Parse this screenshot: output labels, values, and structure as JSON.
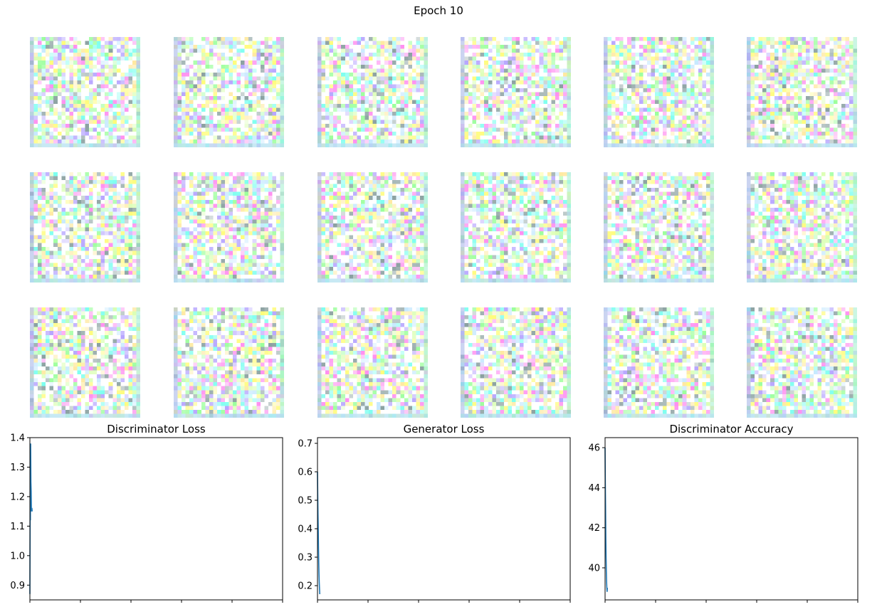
{
  "figure": {
    "title": "Epoch 10"
  },
  "sample_grid": {
    "rows": 3,
    "cols": 6,
    "palette": [
      "#ffffff",
      "#fffc7a",
      "#7dfff0",
      "#9bff9b",
      "#b7a6ff",
      "#ff8ff0",
      "#d9ffb0",
      "#c4e8ff",
      "#ffe9a0",
      "#8aa0a0",
      "#ffffff",
      "#ffffff"
    ]
  },
  "chart_data": [
    {
      "type": "line",
      "title": "Discriminator Loss",
      "xlabel": "",
      "ylabel": "",
      "x": [
        0,
        1,
        2,
        3,
        4,
        5,
        6,
        7,
        8,
        9
      ],
      "y": [
        0.87,
        1.15,
        1.12,
        1.38,
        1.25,
        1.22,
        1.15,
        1.16,
        1.16,
        1.15
      ],
      "xlim": [
        0,
        1000
      ],
      "ylim": [
        0.85,
        1.4
      ],
      "xticks": [
        0,
        200,
        400,
        600,
        800,
        1000
      ],
      "yticks": [
        0.9,
        1.0,
        1.1,
        1.2,
        1.3,
        1.4
      ],
      "ytick_labels": [
        "0.9",
        "1.0",
        "1.1",
        "1.2",
        "1.3",
        "1.4"
      ],
      "color": "#1f77b4",
      "grid": false
    },
    {
      "type": "line",
      "title": "Generator Loss",
      "xlabel": "",
      "ylabel": "",
      "x": [
        0,
        1,
        2,
        3,
        4,
        5,
        6,
        7,
        8,
        9
      ],
      "y": [
        0.6,
        0.52,
        0.45,
        0.4,
        0.33,
        0.28,
        0.24,
        0.21,
        0.19,
        0.17
      ],
      "xlim": [
        0,
        1000
      ],
      "ylim": [
        0.15,
        0.72
      ],
      "xticks": [
        0,
        200,
        400,
        600,
        800,
        1000
      ],
      "yticks": [
        0.2,
        0.3,
        0.4,
        0.5,
        0.6,
        0.7
      ],
      "ytick_labels": [
        "0.2",
        "0.3",
        "0.4",
        "0.5",
        "0.6",
        "0.7"
      ],
      "color": "#1f77b4",
      "grid": false
    },
    {
      "type": "line",
      "title": "Discriminator Accuracy",
      "xlabel": "",
      "ylabel": "",
      "x": [
        0,
        1,
        2,
        3,
        4,
        5,
        6,
        7,
        8,
        9
      ],
      "y": [
        46.0,
        44.2,
        43.0,
        41.5,
        40.5,
        39.8,
        39.3,
        39.0,
        38.8,
        39.0
      ],
      "xlim": [
        0,
        1000
      ],
      "ylim": [
        38.4,
        46.5
      ],
      "xticks": [
        0,
        200,
        400,
        600,
        800,
        1000
      ],
      "yticks": [
        40,
        42,
        44,
        46
      ],
      "ytick_labels": [
        "40",
        "42",
        "44",
        "46"
      ],
      "color": "#1f77b4",
      "grid": false
    }
  ]
}
